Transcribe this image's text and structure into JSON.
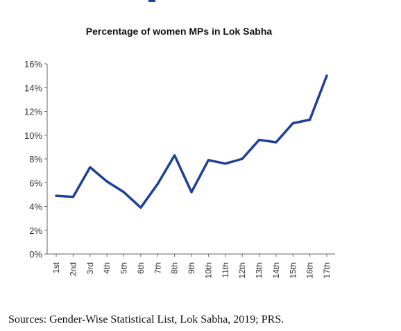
{
  "chart_data": {
    "type": "line",
    "title": "Percentage of women MPs in Lok Sabha",
    "xlabel": "",
    "ylabel": "",
    "categories": [
      "1st",
      "2nd",
      "3rd",
      "4th",
      "5th",
      "6th",
      "7th",
      "8th",
      "9th",
      "10th",
      "11th",
      "12th",
      "13th",
      "14th",
      "15th",
      "16th",
      "17th"
    ],
    "series": [
      {
        "values": [
          4.9,
          4.8,
          7.3,
          6.1,
          5.2,
          3.9,
          5.9,
          8.3,
          5.2,
          7.9,
          7.6,
          8.0,
          9.6,
          9.4,
          11.0,
          11.3,
          15.0
        ],
        "color": "#1f3f99"
      }
    ],
    "ylim": [
      0,
      16
    ],
    "yticks": [
      {
        "value": 0,
        "label": "0%"
      },
      {
        "value": 2,
        "label": "2%"
      },
      {
        "value": 4,
        "label": "4%"
      },
      {
        "value": 6,
        "label": "6%"
      },
      {
        "value": 8,
        "label": "8%"
      },
      {
        "value": 10,
        "label": "10%"
      },
      {
        "value": 12,
        "label": "12%"
      },
      {
        "value": 14,
        "label": "14%"
      },
      {
        "value": 16,
        "label": "16%"
      }
    ],
    "grid": false,
    "legend": "none"
  },
  "source_text": "Sources: Gender-Wise Statistical List, Lok Sabha, 2019; PRS."
}
